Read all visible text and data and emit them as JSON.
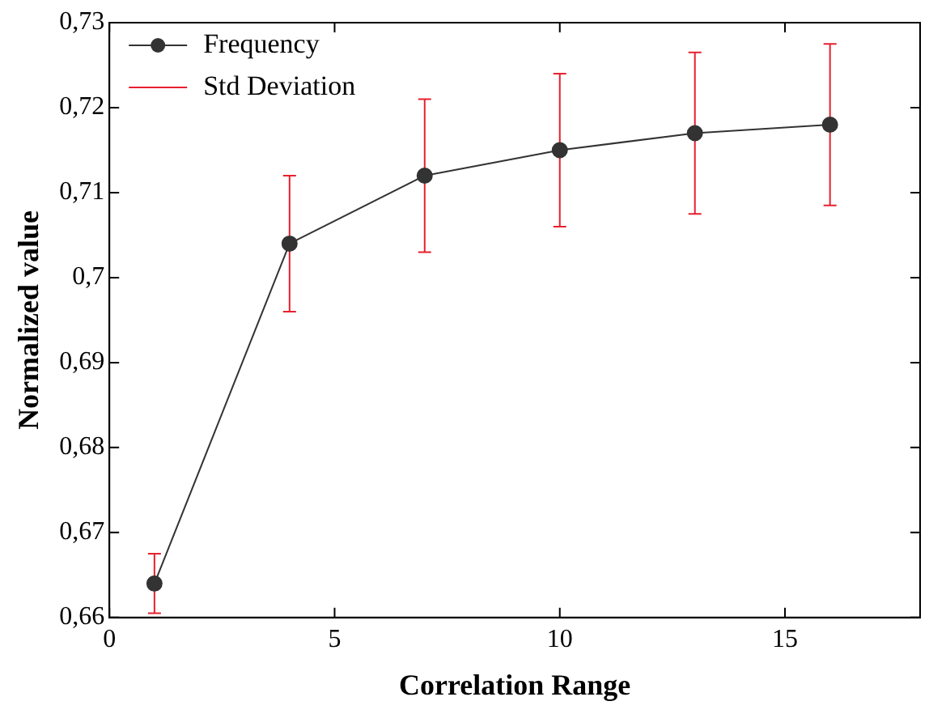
{
  "chart_data": {
    "type": "line",
    "xlabel": "Correlation Range",
    "ylabel": "Normalized value",
    "x": [
      1,
      4,
      7,
      10,
      13,
      16
    ],
    "series": [
      {
        "name": "Frequency",
        "color": "#333333",
        "values": [
          0.664,
          0.704,
          0.712,
          0.715,
          0.717,
          0.718
        ],
        "errors": [
          0.0035,
          0.008,
          0.009,
          0.009,
          0.0095,
          0.0095
        ]
      }
    ],
    "annotations": [
      "Std Deviation"
    ],
    "xlim": [
      0,
      18
    ],
    "xticks": [
      0,
      5,
      10,
      15
    ],
    "ylim": [
      0.66,
      0.73
    ],
    "yticks": [
      {
        "value": 0.66,
        "label": "0,66"
      },
      {
        "value": 0.67,
        "label": "0,67"
      },
      {
        "value": 0.68,
        "label": "0,68"
      },
      {
        "value": 0.69,
        "label": "0,69"
      },
      {
        "value": 0.7,
        "label": "0,7"
      },
      {
        "value": 0.71,
        "label": "0,71"
      },
      {
        "value": 0.72,
        "label": "0,72"
      },
      {
        "value": 0.73,
        "label": "0,73"
      }
    ],
    "grid": false,
    "legend": "top left",
    "marker": "circle",
    "line_style": "solid"
  }
}
